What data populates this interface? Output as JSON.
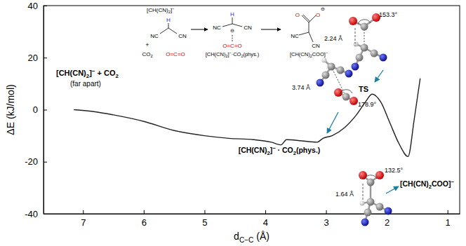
{
  "chart_data": {
    "type": "line",
    "x_label": "dC−C (Å)",
    "y_label": "ΔE (kJ/mol)",
    "x": [
      7.15,
      6.8,
      6.5,
      6.0,
      5.5,
      5.0,
      4.6,
      4.2,
      3.9,
      3.74,
      3.65,
      3.4,
      3.15,
      3.05,
      2.9,
      2.7,
      2.5,
      2.35,
      2.24,
      2.1,
      1.95,
      1.8,
      1.65,
      1.55,
      1.45
    ],
    "values": [
      0,
      -0.8,
      -2,
      -4.5,
      -8,
      -10,
      -11,
      -11.5,
      -12.5,
      -13.5,
      -11.5,
      -12,
      -12.5,
      -11,
      -10,
      -7,
      -2,
      3,
      6,
      3,
      -5,
      -13,
      -18,
      -4,
      12
    ],
    "color": "#222222",
    "xlim": [
      7.65,
      0.8
    ],
    "xticks": [
      7,
      6,
      5,
      4,
      3,
      2,
      1
    ],
    "ylim": [
      -40,
      40
    ],
    "yticks": [
      -40,
      -20,
      0,
      20,
      40
    ],
    "grid": false,
    "annotations": [
      "[CH(CN)2]− + CO2",
      "(far apart)",
      "[CH(CN)2]− · CO2(phys.)",
      "TS",
      "[CH(CN)2COO]−",
      "153.3°",
      "2.24 Å",
      "178.9°",
      "3.74 Å",
      "132.5°",
      "1.64 Å"
    ],
    "scheme": [
      "[CH(CN)2]−",
      "H",
      "NC",
      "CN",
      "+",
      "CO2",
      "O=C=O",
      "H",
      "NC",
      "⊖",
      "CN",
      "O=C=O",
      "[CH(CN)2]−·CO2(phys.)",
      "O",
      "⊖",
      "O",
      "NC",
      "CN",
      "[CH(CN)2COO]−"
    ]
  }
}
